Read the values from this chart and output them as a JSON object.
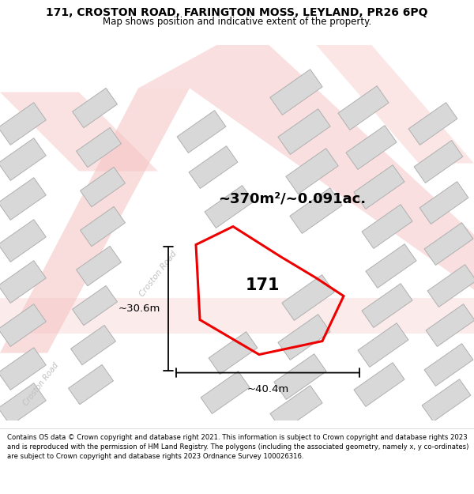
{
  "title": "171, CROSTON ROAD, FARINGTON MOSS, LEYLAND, PR26 6PQ",
  "subtitle": "Map shows position and indicative extent of the property.",
  "footer": "Contains OS data © Crown copyright and database right 2021. This information is subject to Crown copyright and database rights 2023 and is reproduced with the permission of HM Land Registry. The polygons (including the associated geometry, namely x, y co-ordinates) are subject to Crown copyright and database rights 2023 Ordnance Survey 100026316.",
  "area_label": "~370m²/~0.091ac.",
  "width_label": "~40.4m",
  "height_label": "~30.6m",
  "property_number": "171",
  "road_label": "Croston Road",
  "road_label2": "Croston Road",
  "bg_color": "#f8f8f8",
  "map_bg": "#efefef",
  "building_color": "#d8d8d8",
  "building_outline": "#b0b0b0",
  "plot_color": "#ee0000",
  "pink_road_color": "#f5c0c0",
  "pink_road_edge": "#f0a8a8"
}
